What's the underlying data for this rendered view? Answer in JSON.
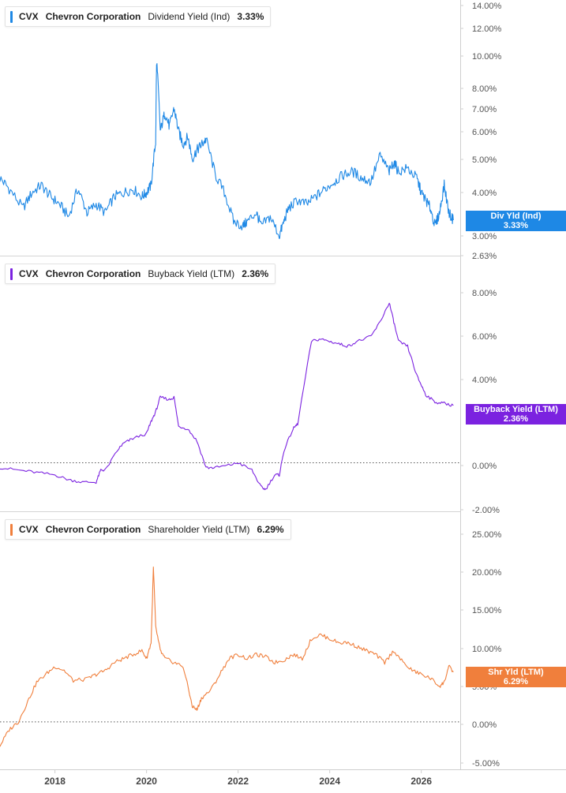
{
  "chart_data": [
    {
      "type": "line",
      "legend": {
        "ticker": "CVX",
        "company": "Chevron Corporation",
        "metric": "Dividend Yield (Ind)",
        "value": "3.33%"
      },
      "badge": {
        "label": "Div Yld (Ind)",
        "value": "3.33%"
      },
      "color": "#1e88e5",
      "scale": "log",
      "ylim": [
        2.63,
        14.0
      ],
      "yticks": [
        "14.00%",
        "12.00%",
        "10.00%",
        "8.00%",
        "7.00%",
        "6.00%",
        "5.00%",
        "4.00%",
        "3.00%",
        "2.63%"
      ],
      "series": [
        {
          "x": [
            2016.8,
            2017.0,
            2017.3,
            2017.5,
            2017.7,
            2017.9,
            2018.1,
            2018.3,
            2018.5,
            2018.7,
            2018.9,
            2019.1,
            2019.3,
            2019.5,
            2019.7,
            2019.9,
            2020.0,
            2020.1,
            2020.2,
            2020.22,
            2020.3,
            2020.4,
            2020.5,
            2020.6,
            2020.7,
            2020.8,
            2020.9,
            2021.0,
            2021.1,
            2021.2,
            2021.3,
            2021.5,
            2021.7,
            2021.9,
            2022.1,
            2022.2,
            2022.4,
            2022.5,
            2022.7,
            2022.9,
            2023.0,
            2023.1,
            2023.3,
            2023.5,
            2023.7,
            2023.9,
            2024.1,
            2024.3,
            2024.5,
            2024.7,
            2024.9,
            2025.1,
            2025.3,
            2025.4,
            2025.5,
            2025.7,
            2025.9,
            2026.0,
            2026.1,
            2026.2,
            2026.3,
            2026.4,
            2026.5,
            2026.6,
            2026.7
          ],
          "values": [
            4.4,
            4.1,
            3.6,
            4.0,
            4.2,
            3.9,
            3.7,
            3.4,
            4.1,
            3.5,
            3.7,
            3.5,
            3.9,
            4.0,
            4.1,
            3.9,
            4.0,
            4.2,
            5.6,
            9.6,
            6.0,
            6.8,
            6.2,
            7.0,
            6.0,
            5.5,
            5.8,
            5.0,
            5.3,
            5.5,
            5.7,
            4.5,
            4.0,
            3.3,
            3.2,
            3.3,
            3.5,
            3.2,
            3.4,
            3.0,
            3.3,
            3.6,
            3.8,
            3.7,
            3.9,
            4.1,
            4.3,
            4.5,
            4.6,
            4.4,
            4.3,
            5.1,
            4.6,
            4.9,
            4.6,
            4.7,
            4.4,
            4.0,
            3.8,
            3.6,
            3.2,
            3.5,
            4.2,
            3.5,
            3.33
          ]
        }
      ]
    },
    {
      "type": "line",
      "legend": {
        "ticker": "CVX",
        "company": "Chevron Corporation",
        "metric": "Buyback Yield (LTM)",
        "value": "2.36%"
      },
      "badge": {
        "label": "Buyback Yield (LTM)",
        "value": "2.36%"
      },
      "color": "#7b22e0",
      "scale": "linear",
      "ylim": [
        -2.0,
        8.5
      ],
      "yticks": [
        "8.00%",
        "6.00%",
        "4.00%",
        "0.00%",
        "-2.00%"
      ],
      "series": [
        {
          "x": [
            2016.8,
            2017.2,
            2017.6,
            2018.0,
            2018.3,
            2018.6,
            2018.9,
            2019.0,
            2019.1,
            2019.4,
            2019.5,
            2019.7,
            2020.0,
            2020.1,
            2020.2,
            2020.3,
            2020.5,
            2020.6,
            2020.7,
            2020.9,
            2021.1,
            2021.3,
            2021.5,
            2021.8,
            2022.0,
            2022.3,
            2022.5,
            2022.6,
            2022.8,
            2022.9,
            2023.0,
            2023.2,
            2023.3,
            2023.6,
            2023.8,
            2024.0,
            2024.2,
            2024.4,
            2024.6,
            2024.9,
            2025.1,
            2025.3,
            2025.4,
            2025.5,
            2025.7,
            2025.9,
            2026.0,
            2026.1,
            2026.3,
            2026.5,
            2026.7
          ],
          "values": [
            -0.2,
            -0.3,
            -0.4,
            -0.5,
            -0.7,
            -0.8,
            -0.8,
            -0.3,
            -0.3,
            0.6,
            0.8,
            1.0,
            1.2,
            1.7,
            2.1,
            2.7,
            2.6,
            2.7,
            1.5,
            1.4,
            0.9,
            -0.2,
            -0.2,
            -0.1,
            0.0,
            -0.3,
            -1.0,
            -1.1,
            -0.5,
            -0.5,
            0.5,
            1.4,
            1.6,
            5.0,
            5.1,
            5.0,
            4.9,
            4.8,
            5.0,
            5.2,
            5.8,
            6.6,
            5.8,
            5.0,
            4.8,
            3.6,
            3.2,
            2.8,
            2.5,
            2.45,
            2.36
          ]
        }
      ]
    },
    {
      "type": "line",
      "legend": {
        "ticker": "CVX",
        "company": "Chevron Corporation",
        "metric": "Shareholder Yield (LTM)",
        "value": "6.29%"
      },
      "badge": {
        "label": "Shr Yld (LTM)",
        "value": "6.29%"
      },
      "color": "#f07f3c",
      "scale": "linear",
      "ylim": [
        -5.5,
        26.5
      ],
      "yticks": [
        "25.00%",
        "20.00%",
        "15.00%",
        "10.00%",
        "5.00%",
        "0.00%",
        "-5.00%"
      ],
      "series": [
        {
          "x": [
            2016.8,
            2017.0,
            2017.2,
            2017.4,
            2017.6,
            2017.8,
            2018.0,
            2018.2,
            2018.4,
            2018.7,
            2018.9,
            2019.1,
            2019.3,
            2019.5,
            2019.7,
            2019.9,
            2020.0,
            2020.1,
            2020.15,
            2020.2,
            2020.3,
            2020.4,
            2020.6,
            2020.8,
            2021.0,
            2021.1,
            2021.2,
            2021.4,
            2021.6,
            2021.8,
            2022.0,
            2022.2,
            2022.4,
            2022.6,
            2022.8,
            2023.0,
            2023.2,
            2023.4,
            2023.6,
            2023.8,
            2024.0,
            2024.2,
            2024.4,
            2024.6,
            2024.8,
            2025.0,
            2025.2,
            2025.4,
            2025.6,
            2025.8,
            2026.0,
            2026.2,
            2026.4,
            2026.5,
            2026.6,
            2026.7
          ],
          "values": [
            -3.0,
            -1.0,
            0.0,
            2.5,
            5.0,
            6.0,
            7.0,
            6.5,
            5.2,
            5.4,
            6.0,
            6.5,
            7.5,
            8.0,
            8.5,
            9.0,
            8.0,
            10.0,
            19.5,
            12.0,
            9.0,
            8.0,
            7.5,
            7.0,
            2.0,
            1.5,
            3.0,
            4.0,
            6.0,
            8.0,
            8.5,
            8.0,
            8.5,
            8.2,
            7.5,
            7.8,
            8.5,
            8.0,
            10.5,
            11.0,
            10.5,
            10.0,
            10.0,
            9.5,
            9.0,
            8.5,
            7.5,
            9.0,
            7.5,
            6.5,
            6.0,
            5.5,
            4.5,
            5.0,
            7.0,
            6.29
          ]
        }
      ]
    }
  ],
  "xaxis": {
    "ticks": [
      2018,
      2020,
      2022,
      2024,
      2026
    ],
    "tick_labels": [
      "2018",
      "2020",
      "2022",
      "2024",
      "2026"
    ],
    "xlim": [
      2016.8,
      2026.85
    ]
  }
}
